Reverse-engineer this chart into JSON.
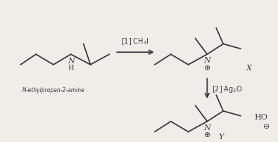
{
  "bg_color": "#f0ede8",
  "line_color": "#3a3a3a",
  "text_color": "#3a3a3a",
  "figsize": [
    3.95,
    2.03
  ],
  "dpi": 100,
  "mol1_label": "N-ethylpropan-2-amine",
  "arrow1_label": "[1] CH$_3$I",
  "arrow2_label": "[2] Ag$_2$O"
}
